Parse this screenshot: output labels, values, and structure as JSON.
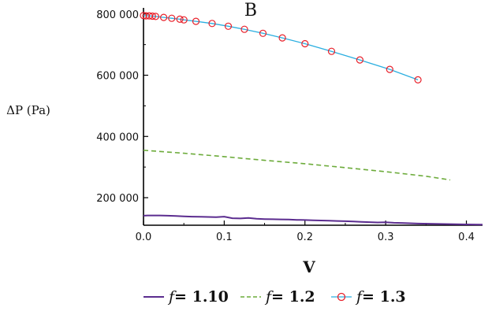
{
  "chart_data": {
    "type": "line",
    "title": "",
    "panel_label": "B",
    "xlabel": "V",
    "ylabel": "ΔP (Pa)",
    "xlim": [
      0,
      0.42
    ],
    "ylim": [
      110000,
      820000
    ],
    "x_ticks": [
      0,
      0.1,
      0.2,
      0.3,
      0.4
    ],
    "x_tick_labels": [
      "0.0",
      "0.1",
      "0.2",
      "0.3",
      "0.4"
    ],
    "y_ticks": [
      200000,
      400000,
      600000,
      800000
    ],
    "y_tick_labels": [
      "200 000",
      "400 000",
      "600 000",
      "800 000"
    ],
    "legend": {
      "position": "bottom",
      "symbol": "f",
      "equals": "=",
      "entries": [
        {
          "name": "f = 1.10",
          "value": "1.10",
          "color": "#5b2c8f",
          "style": "solid"
        },
        {
          "name": "f = 1.2",
          "value": "1.2",
          "color": "#6cab3a",
          "style": "dashed"
        },
        {
          "name": "f = 1.3",
          "value": "1.3",
          "color": "#e8202a",
          "style": "circle-marker",
          "line_color": "#29aee0"
        }
      ]
    },
    "series": [
      {
        "name": "f = 1.10",
        "x": [
          0,
          0.005,
          0.01,
          0.02,
          0.03,
          0.04,
          0.05,
          0.06,
          0.07,
          0.08,
          0.09,
          0.1,
          0.11,
          0.12,
          0.13,
          0.14,
          0.15,
          0.16,
          0.17,
          0.18,
          0.19,
          0.2,
          0.21,
          0.22,
          0.23,
          0.24,
          0.25,
          0.26,
          0.27,
          0.28,
          0.29,
          0.3,
          0.31,
          0.32,
          0.33,
          0.34,
          0.36,
          0.38,
          0.4,
          0.42
        ],
        "values": [
          141000,
          142000,
          142000,
          142000,
          141000,
          140000,
          139000,
          138000,
          137500,
          137000,
          136500,
          138000,
          133000,
          132000,
          134000,
          131000,
          130000,
          129500,
          129000,
          128500,
          127500,
          127000,
          126000,
          125500,
          125000,
          124000,
          123000,
          122000,
          121000,
          120000,
          119000,
          119500,
          118000,
          117500,
          116500,
          115500,
          114500,
          113500,
          112500,
          112000
        ]
      },
      {
        "name": "f = 1.2",
        "x": [
          0,
          0.05,
          0.1,
          0.15,
          0.2,
          0.25,
          0.3,
          0.35,
          0.38
        ],
        "values": [
          355000,
          345000,
          334000,
          322000,
          311000,
          298000,
          285000,
          270000,
          258000
        ]
      },
      {
        "name": "f = 1.3",
        "x": [
          0,
          0.003,
          0.007,
          0.011,
          0.015,
          0.025,
          0.035,
          0.045,
          0.05,
          0.065,
          0.085,
          0.105,
          0.125,
          0.148,
          0.172,
          0.2,
          0.233,
          0.268,
          0.305,
          0.34
        ],
        "values": [
          795000,
          794000,
          794000,
          793000,
          792000,
          789000,
          786000,
          783000,
          781000,
          776000,
          769000,
          760000,
          750000,
          737000,
          722000,
          703000,
          678000,
          650000,
          619000,
          585000
        ]
      }
    ]
  }
}
